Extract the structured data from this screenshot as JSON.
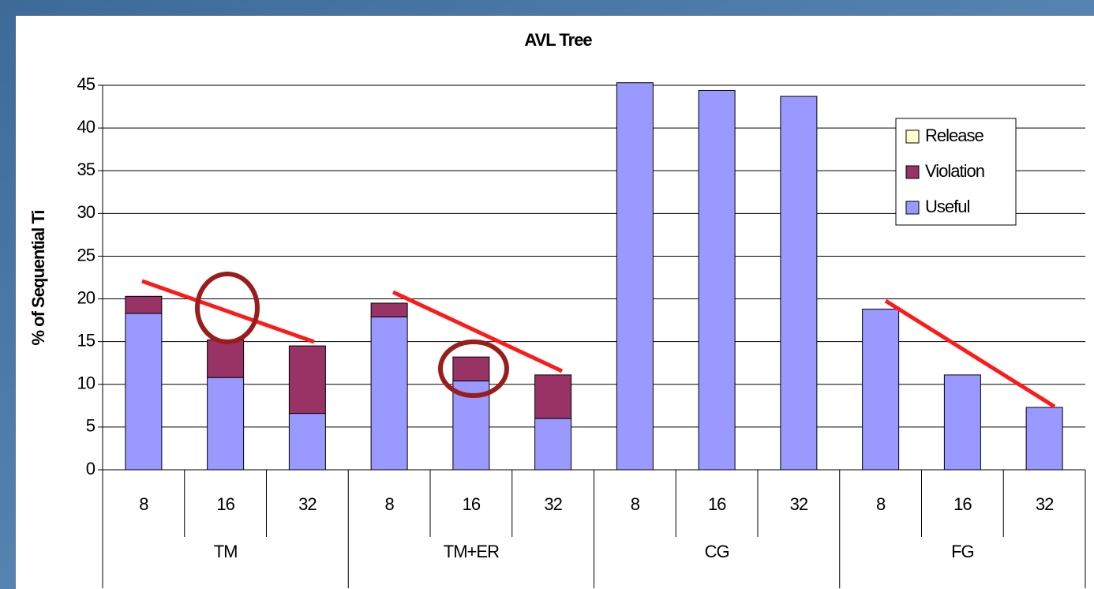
{
  "chart_data": {
    "type": "stacked_bar",
    "title": "AVL Tree",
    "y_label": "% of Sequential Ti",
    "categories": [
      "8",
      "16",
      "32",
      "8",
      "16",
      "32",
      "8",
      "16",
      "32",
      "8",
      "16",
      "32"
    ],
    "groups": [
      "TM",
      "TM+ER",
      "CG",
      "FG"
    ],
    "series": [
      {
        "name": "Useful",
        "color": "#9999ff",
        "values": [
          18.3,
          10.8,
          6.6,
          17.9,
          10.4,
          6.0,
          45.3,
          44.4,
          43.7,
          18.8,
          11.1,
          7.3
        ]
      },
      {
        "name": "Violation",
        "color": "#993366",
        "values": [
          2.0,
          4.4,
          7.9,
          1.6,
          2.8,
          5.1,
          0,
          0,
          0,
          0,
          0,
          0
        ]
      },
      {
        "name": "Release",
        "color": "#ffffcc",
        "values": [
          0,
          0,
          0,
          0,
          0,
          0,
          0,
          0,
          0,
          0,
          0,
          0
        ]
      }
    ],
    "ylim": [
      0,
      45
    ],
    "yticks": [
      0,
      5,
      10,
      15,
      20,
      25,
      30,
      35,
      40,
      45
    ],
    "grid": true,
    "legend": "upper right"
  }
}
